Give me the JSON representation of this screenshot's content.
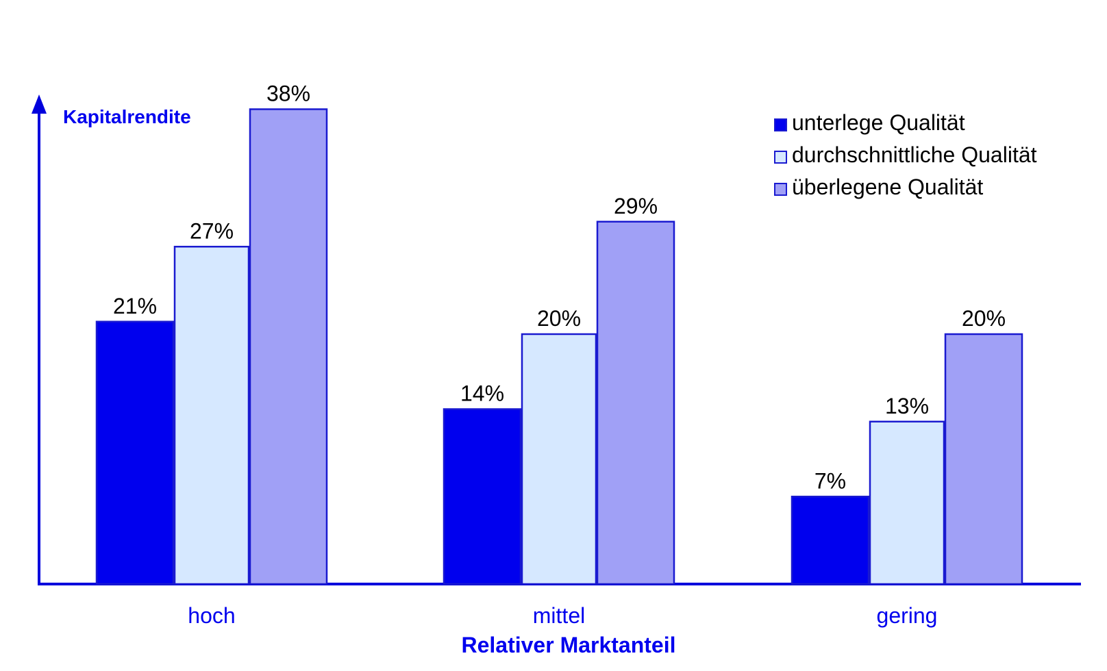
{
  "chart_data": {
    "type": "bar",
    "title": "",
    "ylabel": "Kapitalrendite",
    "xlabel": "Relativer Marktanteil",
    "categories": [
      "hoch",
      "mittel",
      "gering"
    ],
    "ylim": [
      0,
      40
    ],
    "grid": false,
    "legend_position": "top-right",
    "value_suffix": "%",
    "series": [
      {
        "name": "unterlege Qualität",
        "values": [
          21,
          14,
          7
        ],
        "color": "#0000ee"
      },
      {
        "name": "durchschnittliche Qualität",
        "values": [
          27,
          20,
          13
        ],
        "color": "#d6e8ff"
      },
      {
        "name": "überlegene Qualität",
        "values": [
          38,
          29,
          20
        ],
        "color": "#a0a0f6"
      }
    ],
    "axis_color": "#0000dd",
    "bar_border_color": "#1a1ad0"
  }
}
